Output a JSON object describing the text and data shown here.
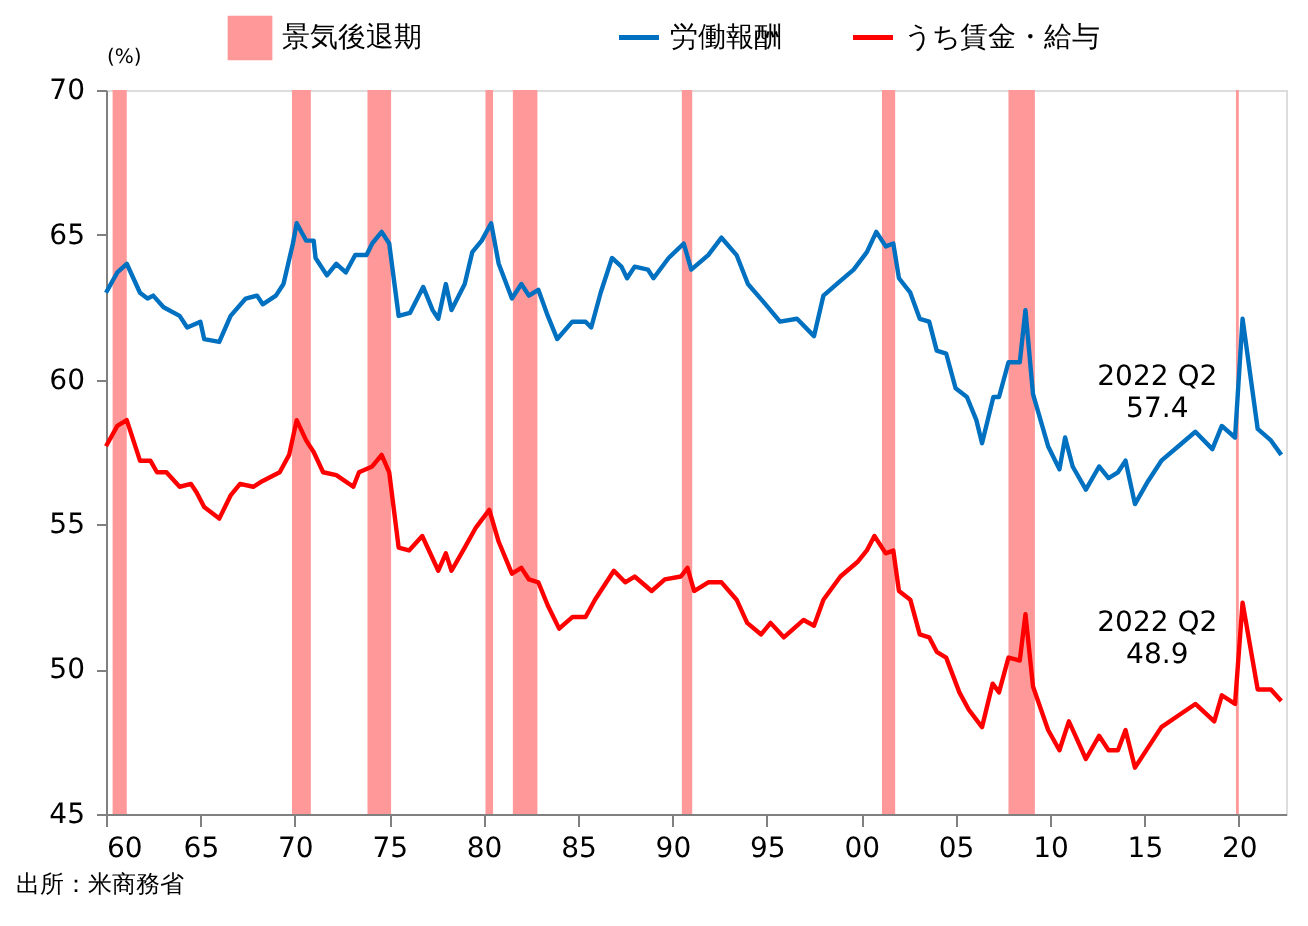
{
  "chart_data": {
    "type": "line",
    "ylabel": "(%)",
    "xlim": [
      1960,
      2022.5
    ],
    "xticks": [
      {
        "value": 1960,
        "label": "60"
      },
      {
        "value": 1965,
        "label": "65"
      },
      {
        "value": 1970,
        "label": "70"
      },
      {
        "value": 1975,
        "label": "75"
      },
      {
        "value": 1980,
        "label": "80"
      },
      {
        "value": 1985,
        "label": "85"
      },
      {
        "value": 1990,
        "label": "90"
      },
      {
        "value": 1995,
        "label": "95"
      },
      {
        "value": 2000,
        "label": "00"
      },
      {
        "value": 2005,
        "label": "05"
      },
      {
        "value": 2010,
        "label": "10"
      },
      {
        "value": 2015,
        "label": "15"
      },
      {
        "value": 2020,
        "label": "20"
      }
    ],
    "ylim": [
      45,
      70
    ],
    "yticks": [
      45,
      50,
      55,
      60,
      65,
      70
    ],
    "grid": false,
    "legend": "top",
    "series": [
      {
        "name": "労働報酬",
        "color": "#0070c0",
        "x": [
          1960.0,
          1960.6,
          1961.1,
          1961.8,
          1962.2,
          1962.5,
          1963.05,
          1963.9,
          1964.3,
          1965.0,
          1965.2,
          1966.0,
          1966.6,
          1967.4,
          1968.0,
          1968.3,
          1969.0,
          1969.4,
          1969.9,
          1970.1,
          1970.6,
          1971.0,
          1971.1,
          1971.7,
          1972.2,
          1972.7,
          1973.2,
          1973.8,
          1974.1,
          1974.6,
          1975.0,
          1975.5,
          1976.1,
          1976.8,
          1977.3,
          1977.6,
          1978.0,
          1978.3,
          1979.0,
          1979.4,
          1979.9,
          1980.4,
          1980.8,
          1981.5,
          1982.0,
          1982.4,
          1982.9,
          1983.4,
          1983.9,
          1984.7,
          1985.4,
          1985.7,
          1986.2,
          1986.8,
          1987.3,
          1987.6,
          1988.0,
          1988.7,
          1989.0,
          1989.8,
          1990.6,
          1991.0,
          1991.9,
          1992.6,
          1993.4,
          1994.0,
          1994.8,
          1995.7,
          1996.6,
          1997.5,
          1998.0,
          1998.7,
          1999.6,
          2000.3,
          2000.8,
          2001.3,
          2001.7,
          2002.0,
          2002.6,
          2003.1,
          2003.6,
          2004.0,
          2004.5,
          2005.0,
          2005.6,
          2006.1,
          2006.4,
          2007.0,
          2007.3,
          2007.8,
          2008.4,
          2008.7,
          2009.1,
          2009.9,
          2010.5,
          2010.8,
          2011.2,
          2011.9,
          2012.6,
          2013.1,
          2013.6,
          2014.0,
          2014.5,
          2015.2,
          2015.9,
          2016.8,
          2017.7,
          2018.6,
          2019.1,
          2019.8,
          2020.2,
          2021.0,
          2021.7,
          2022.25
        ],
        "values": [
          63.0,
          63.7,
          64.0,
          63.0,
          62.8,
          62.9,
          62.5,
          62.2,
          61.8,
          62.0,
          61.4,
          61.3,
          62.2,
          62.8,
          62.9,
          62.6,
          62.9,
          63.3,
          64.7,
          65.4,
          64.8,
          64.8,
          64.2,
          63.6,
          64.0,
          63.7,
          64.3,
          64.3,
          64.7,
          65.1,
          64.7,
          62.2,
          62.3,
          63.2,
          62.4,
          62.1,
          63.3,
          62.4,
          63.3,
          64.4,
          64.8,
          65.4,
          64.0,
          62.8,
          63.3,
          62.9,
          63.1,
          62.2,
          61.4,
          62.0,
          62.0,
          61.8,
          63.0,
          64.2,
          63.9,
          63.5,
          63.9,
          63.8,
          63.5,
          64.2,
          64.7,
          63.8,
          64.3,
          64.9,
          64.3,
          63.3,
          62.7,
          62.0,
          62.1,
          61.5,
          62.9,
          63.3,
          63.8,
          64.4,
          65.1,
          64.6,
          64.7,
          63.5,
          63.0,
          62.1,
          62.0,
          61.0,
          60.9,
          59.7,
          59.4,
          58.6,
          57.8,
          59.4,
          59.4,
          60.6,
          60.6,
          62.4,
          59.5,
          57.7,
          56.9,
          58.0,
          57.0,
          56.2,
          57.0,
          56.6,
          56.8,
          57.2,
          55.7,
          56.5,
          57.2,
          57.7,
          58.2,
          57.6,
          58.4,
          58.0,
          62.1,
          58.3,
          57.9,
          57.4
        ]
      },
      {
        "name": "うち賃金・給与",
        "color": "#ff0000",
        "x": [
          1960.0,
          1960.6,
          1961.1,
          1961.8,
          1962.35,
          1962.7,
          1963.2,
          1963.9,
          1964.5,
          1964.8,
          1965.2,
          1966.0,
          1966.6,
          1967.1,
          1967.8,
          1968.3,
          1969.2,
          1969.7,
          1970.1,
          1970.6,
          1971.0,
          1971.5,
          1972.2,
          1973.1,
          1973.4,
          1974.1,
          1974.6,
          1975.0,
          1975.5,
          1976.05,
          1976.75,
          1977.6,
          1978.0,
          1978.3,
          1979.0,
          1979.6,
          1980.3,
          1980.8,
          1981.5,
          1982.0,
          1982.4,
          1982.9,
          1983.4,
          1984.0,
          1984.7,
          1985.4,
          1985.9,
          1986.9,
          1987.5,
          1988.0,
          1988.9,
          1989.6,
          1990.45,
          1990.8,
          1991.15,
          1991.9,
          1992.6,
          1993.4,
          1993.96,
          1994.7,
          1995.2,
          1995.9,
          1996.95,
          1997.5,
          1998.0,
          1998.9,
          1999.8,
          2000.3,
          2000.7,
          2001.3,
          2001.7,
          2002.0,
          2002.6,
          2003.1,
          2003.6,
          2004.0,
          2004.5,
          2005.2,
          2005.7,
          2006.4,
          2006.96,
          2007.3,
          2007.8,
          2008.4,
          2008.7,
          2009.1,
          2009.9,
          2010.5,
          2011.0,
          2011.35,
          2011.9,
          2012.6,
          2013.1,
          2013.6,
          2014.0,
          2014.5,
          2015.2,
          2015.9,
          2016.8,
          2017.7,
          2018.7,
          2019.1,
          2019.8,
          2020.2,
          2021.0,
          2021.7,
          2022.25
        ],
        "values": [
          57.7,
          58.4,
          58.6,
          57.2,
          57.2,
          56.8,
          56.8,
          56.3,
          56.4,
          56.1,
          55.6,
          55.2,
          56.0,
          56.4,
          56.3,
          56.5,
          56.8,
          57.4,
          58.6,
          57.9,
          57.5,
          56.8,
          56.7,
          56.3,
          56.8,
          57.0,
          57.4,
          56.8,
          54.2,
          54.1,
          54.6,
          53.4,
          54.0,
          53.4,
          54.2,
          54.9,
          55.5,
          54.4,
          53.3,
          53.5,
          53.1,
          53.0,
          52.2,
          51.4,
          51.8,
          51.8,
          52.4,
          53.4,
          53.0,
          53.2,
          52.7,
          53.1,
          53.2,
          53.5,
          52.7,
          53.0,
          53.0,
          52.4,
          51.6,
          51.2,
          51.6,
          51.1,
          51.7,
          51.5,
          52.4,
          53.2,
          53.7,
          54.1,
          54.6,
          54.0,
          54.1,
          52.7,
          52.4,
          51.2,
          51.1,
          50.6,
          50.4,
          49.2,
          48.6,
          48.0,
          49.5,
          49.2,
          50.4,
          50.3,
          51.9,
          49.4,
          47.9,
          47.2,
          48.2,
          47.7,
          46.9,
          47.7,
          47.2,
          47.2,
          47.9,
          46.6,
          47.3,
          48.0,
          48.4,
          48.8,
          48.2,
          49.1,
          48.8,
          52.3,
          49.3,
          49.3,
          48.9
        ]
      }
    ],
    "bands": [
      {
        "axis": "x",
        "from": 1960.35,
        "to": 1961.1,
        "label": "景気後退期",
        "color": "#ff9999"
      },
      {
        "axis": "x",
        "from": 1969.85,
        "to": 1970.85,
        "color": "#ff9999"
      },
      {
        "axis": "x",
        "from": 1973.85,
        "to": 1975.1,
        "color": "#ff9999"
      },
      {
        "axis": "x",
        "from": 1980.1,
        "to": 1980.5,
        "color": "#ff9999"
      },
      {
        "axis": "x",
        "from": 1981.55,
        "to": 1982.85,
        "color": "#ff9999"
      },
      {
        "axis": "x",
        "from": 1990.5,
        "to": 1991.05,
        "color": "#ff9999"
      },
      {
        "axis": "x",
        "from": 2001.1,
        "to": 2001.8,
        "color": "#ff9999"
      },
      {
        "axis": "x",
        "from": 2007.8,
        "to": 2009.2,
        "color": "#ff9999"
      },
      {
        "axis": "x",
        "from": 2019.85,
        "to": 2020.0,
        "color": "#ff9999"
      }
    ],
    "annotations": [
      {
        "text": "2022 Q2\n57.4",
        "x": 2022.25,
        "y": 57.4
      },
      {
        "text": "2022 Q2\n48.9",
        "x": 2022.25,
        "y": 48.9
      },
      "出所：米商務省"
    ]
  }
}
